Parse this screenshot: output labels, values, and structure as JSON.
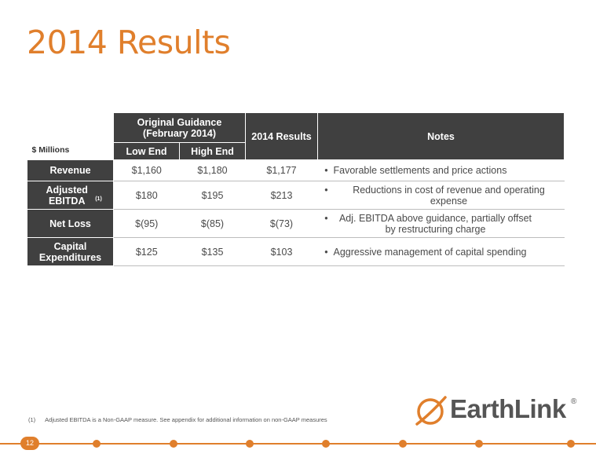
{
  "title": "2014 Results",
  "table": {
    "units_label": "$ Millions",
    "guidance_header": "Original Guidance\n(February 2014)",
    "results_header": "2014 Results",
    "notes_header": "Notes",
    "low_end_header": "Low End",
    "high_end_header": "High End",
    "rows": [
      {
        "label": "Revenue",
        "low": "$1,160",
        "high": "$1,180",
        "result": "$1,177",
        "note": "Favorable settlements and price actions"
      },
      {
        "label": "Adjusted EBITDA",
        "label_sup": "(1)",
        "low": "$180",
        "high": "$195",
        "result": "$213",
        "note": "Reductions in cost of revenue and operating expense"
      },
      {
        "label": "Net Loss",
        "low": "$(95)",
        "high": "$(85)",
        "result": "$(73)",
        "note": "Adj. EBITDA above guidance, partially offset by restructuring charge"
      },
      {
        "label": "Capital Expenditures",
        "low": "$125",
        "high": "$135",
        "result": "$103",
        "note": "Aggressive management of capital spending"
      }
    ],
    "bullet": "•"
  },
  "footnote": {
    "number": "(1)",
    "text": "Adjusted EBITDA is a Non-GAAP measure.  See appendix for additional information on non-GAAP measures"
  },
  "logo": {
    "text": "EarthLink",
    "reg": "®"
  },
  "page_number": "12",
  "colors": {
    "accent": "#E07F2C",
    "header_dark": "#404040"
  }
}
